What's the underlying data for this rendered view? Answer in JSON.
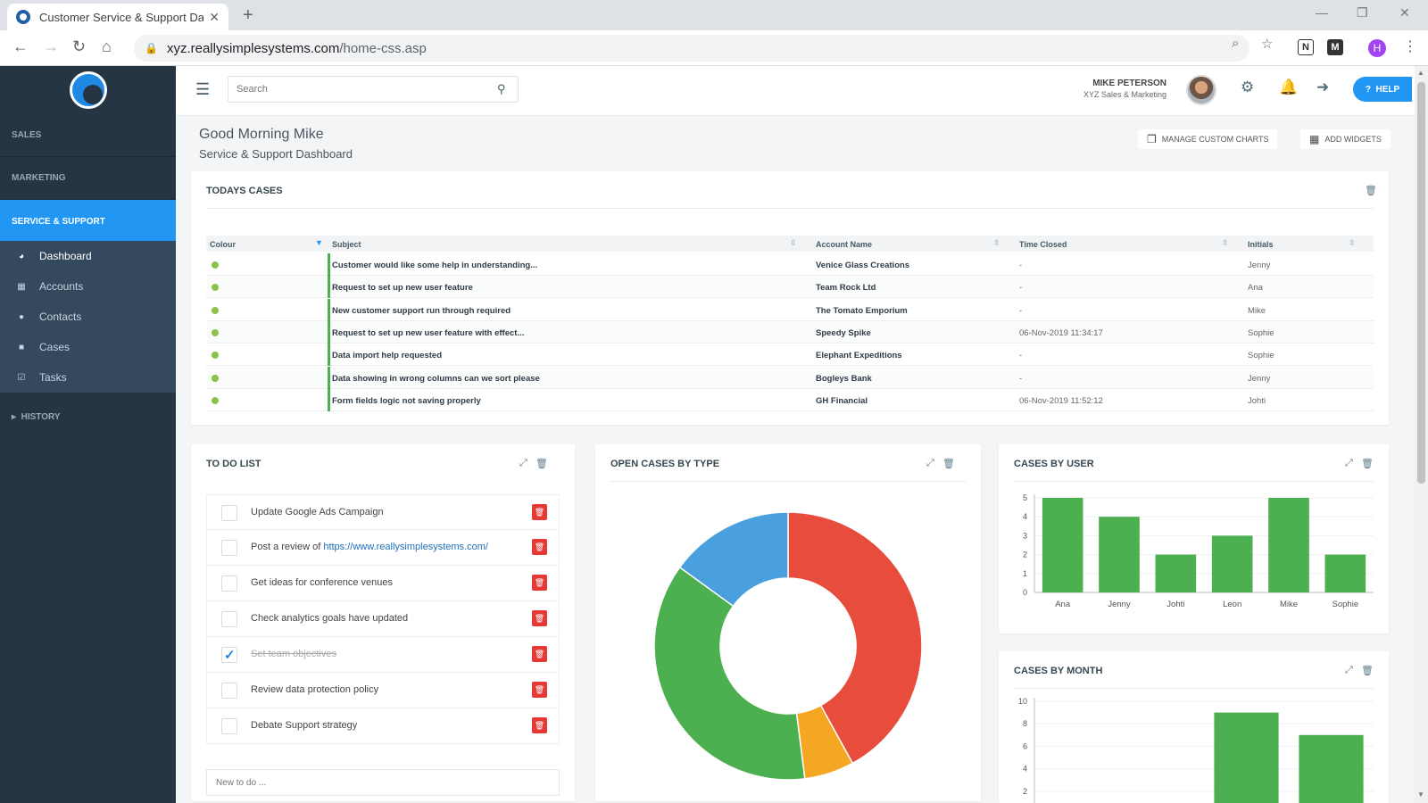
{
  "browser": {
    "tab_title": "Customer Service & Support Dashboard",
    "url_host": "xyz.reallysimplesystems.com",
    "url_path": "/home-css.asp",
    "profile_initial": "H",
    "ext_n": "N",
    "ext_m": "M"
  },
  "sidebar": {
    "sections": [
      "SALES",
      "MARKETING",
      "SERVICE & SUPPORT"
    ],
    "items": [
      {
        "label": "Dashboard",
        "icon": "dashboard-icon"
      },
      {
        "label": "Accounts",
        "icon": "building-icon"
      },
      {
        "label": "Contacts",
        "icon": "users-icon"
      },
      {
        "label": "Cases",
        "icon": "briefcase-icon"
      },
      {
        "label": "Tasks",
        "icon": "checkbox-icon"
      }
    ],
    "history": "HISTORY"
  },
  "header": {
    "search_placeholder": "Search",
    "user_name": "MIKE PETERSON",
    "user_company": "XYZ Sales & Marketing",
    "help_label": "HELP"
  },
  "page": {
    "greeting": "Good Morning Mike",
    "subtitle": "Service & Support Dashboard",
    "manage_charts": "MANAGE CUSTOM CHARTS",
    "add_widgets": "ADD WIDGETS"
  },
  "cases": {
    "title": "TODAYS CASES",
    "columns": [
      "Colour",
      "Subject",
      "Account Name",
      "Time Closed",
      "Initials"
    ],
    "rows": [
      {
        "subject": "Customer would like some help in understanding...",
        "account": "Venice Glass Creations",
        "closed": "-",
        "initials": "Jenny"
      },
      {
        "subject": "Request to set up new user feature",
        "account": "Team Rock Ltd",
        "closed": "-",
        "initials": "Ana"
      },
      {
        "subject": "New customer support run through required",
        "account": "The Tomato Emporium",
        "closed": "-",
        "initials": "Mike"
      },
      {
        "subject": "Request to set up new user feature with effect...",
        "account": "Speedy Spike",
        "closed": "06-Nov-2019 11:34:17",
        "initials": "Sophie"
      },
      {
        "subject": "Data import help requested",
        "account": "Elephant Expeditions",
        "closed": "-",
        "initials": "Sophie"
      },
      {
        "subject": "Data showing in wrong columns can we sort please",
        "account": "Bogleys Bank",
        "closed": "-",
        "initials": "Jenny"
      },
      {
        "subject": "Form fields logic not saving properly",
        "account": "GH Financial",
        "closed": "06-Nov-2019 11:52:12",
        "initials": "Johti"
      }
    ]
  },
  "todo": {
    "title": "TO DO LIST",
    "items": [
      {
        "text": "Update Google Ads Campaign",
        "done": false
      },
      {
        "text": "Post a review of ",
        "link": "https://www.reallysimplesystems.com/",
        "done": false
      },
      {
        "text": "Get ideas for conference venues",
        "done": false
      },
      {
        "text": "Check analytics goals have updated",
        "done": false
      },
      {
        "text": "Set team objectives",
        "done": true
      },
      {
        "text": "Review data protection policy",
        "done": false
      },
      {
        "text": "Debate Support strategy",
        "done": false
      }
    ],
    "new_placeholder": "New to do ..."
  },
  "chart_data": [
    {
      "type": "pie",
      "title": "OPEN CASES BY TYPE",
      "donut": true,
      "values": [
        42,
        6,
        37,
        15
      ],
      "colors": [
        "#e74c3c",
        "#f5a623",
        "#4caf50",
        "#4a9fdf"
      ]
    },
    {
      "type": "bar",
      "title": "CASES BY USER",
      "categories": [
        "Ana",
        "Jenny",
        "Johti",
        "Leon",
        "Mike",
        "Sophie"
      ],
      "values": [
        5,
        4,
        2,
        3,
        5,
        2
      ],
      "ylim": [
        0,
        5
      ],
      "yticks": [
        0,
        1,
        2,
        3,
        4,
        5
      ],
      "color": "#4caf50"
    },
    {
      "type": "bar",
      "title": "CASES BY MONTH",
      "categories": [
        "",
        "",
        "",
        ""
      ],
      "values": [
        0,
        0,
        9,
        7
      ],
      "ylim": [
        0,
        10
      ],
      "yticks": [
        2,
        4,
        6,
        8,
        10
      ],
      "color": "#4caf50"
    }
  ]
}
